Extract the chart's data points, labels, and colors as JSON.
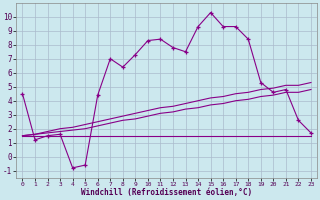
{
  "xlabel": "Windchill (Refroidissement éolien,°C)",
  "bg_color": "#cce8ee",
  "line_color": "#880088",
  "grid_color": "#aabbcc",
  "x": [
    0,
    1,
    2,
    3,
    4,
    5,
    6,
    7,
    8,
    9,
    10,
    11,
    12,
    13,
    14,
    15,
    16,
    17,
    18,
    19,
    20,
    21,
    22,
    23
  ],
  "y_main": [
    4.5,
    1.2,
    1.5,
    1.6,
    -0.8,
    -0.6,
    4.4,
    7.0,
    6.4,
    7.3,
    8.3,
    8.4,
    7.8,
    7.5,
    9.3,
    10.3,
    9.3,
    9.3,
    8.4,
    5.3,
    4.6,
    4.8,
    2.6,
    1.7
  ],
  "y_line1": [
    1.5,
    1.5,
    1.5,
    1.5,
    1.5,
    1.5,
    1.5,
    1.5,
    1.5,
    1.5,
    1.5,
    1.5,
    1.5,
    1.5,
    1.5,
    1.5,
    1.5,
    1.5,
    1.5,
    1.5,
    1.5,
    1.5,
    1.5,
    1.5
  ],
  "y_line2": [
    1.5,
    1.6,
    1.7,
    1.8,
    1.9,
    2.0,
    2.2,
    2.4,
    2.6,
    2.7,
    2.9,
    3.1,
    3.2,
    3.4,
    3.5,
    3.7,
    3.8,
    4.0,
    4.1,
    4.3,
    4.4,
    4.6,
    4.6,
    4.8
  ],
  "y_line3": [
    1.5,
    1.6,
    1.8,
    2.0,
    2.1,
    2.3,
    2.5,
    2.7,
    2.9,
    3.1,
    3.3,
    3.5,
    3.6,
    3.8,
    4.0,
    4.2,
    4.3,
    4.5,
    4.6,
    4.8,
    4.9,
    5.1,
    5.1,
    5.3
  ],
  "ylim": [
    -1.5,
    11.0
  ],
  "xlim": [
    -0.5,
    23.5
  ],
  "yticks": [
    -1,
    0,
    1,
    2,
    3,
    4,
    5,
    6,
    7,
    8,
    9,
    10
  ],
  "xticks": [
    0,
    1,
    2,
    3,
    4,
    5,
    6,
    7,
    8,
    9,
    10,
    11,
    12,
    13,
    14,
    15,
    16,
    17,
    18,
    19,
    20,
    21,
    22,
    23
  ]
}
